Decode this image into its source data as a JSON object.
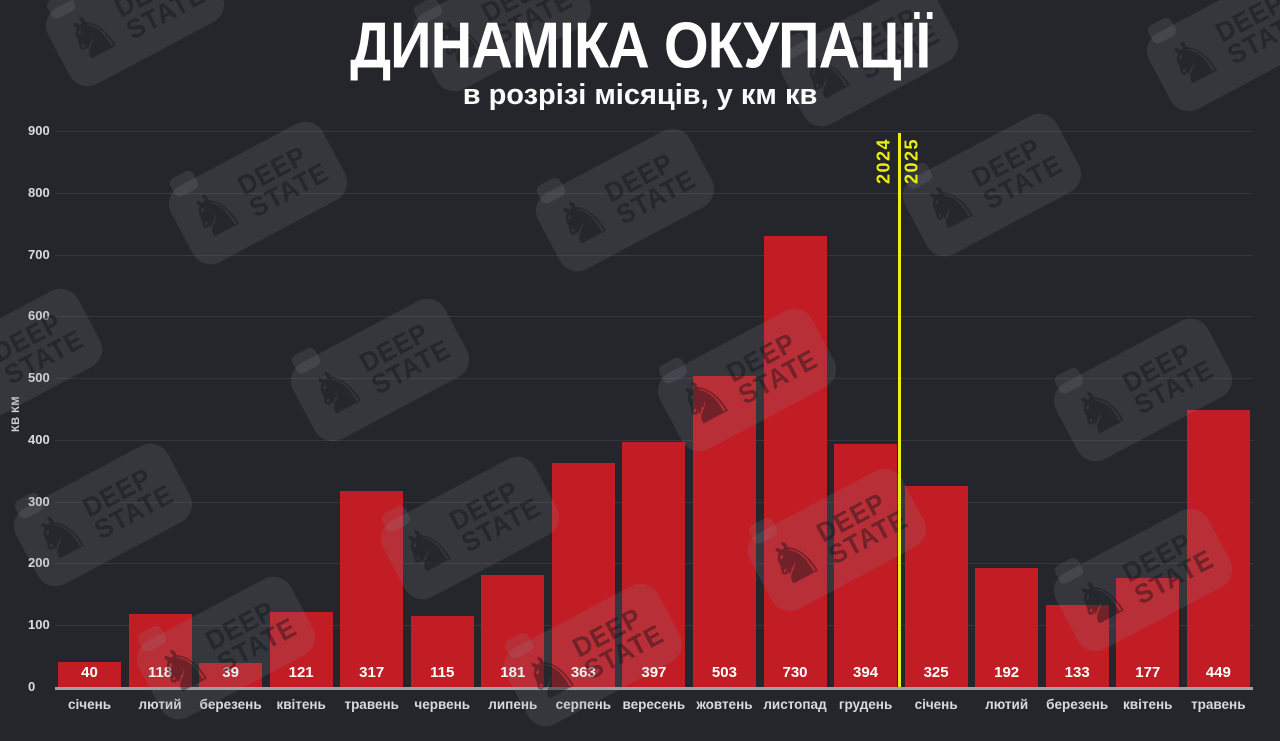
{
  "header": {
    "title": "ДИНАМІКА ОКУПАЦІЇ",
    "subtitle": "в розрізі місяців, у км кв"
  },
  "chart_data": {
    "type": "bar",
    "title": "ДИНАМІКА ОКУПАЦІЇ",
    "subtitle": "в розрізі місяців, у км кв",
    "categories": [
      "січень",
      "лютий",
      "березень",
      "квітень",
      "травень",
      "червень",
      "липень",
      "серпень",
      "вересень",
      "жовтень",
      "листопад",
      "грудень",
      "січень",
      "лютий",
      "березень",
      "квітень",
      "травень"
    ],
    "values": [
      40,
      118,
      39,
      121,
      317,
      115,
      181,
      363,
      397,
      503,
      730,
      394,
      325,
      192,
      133,
      177,
      449
    ],
    "xlabel": "",
    "ylabel": "КВ КМ",
    "ylim": [
      0,
      900
    ],
    "ytick_step": 100,
    "yticks": [
      0,
      100,
      200,
      300,
      400,
      500,
      600,
      700,
      800,
      900
    ],
    "grid": "horizontal",
    "legend": "none",
    "bar_color": "#c21c24",
    "year_split_after_index": 11
  },
  "year_divider": {
    "left_year": "2024",
    "right_year": "2025",
    "color": "#e9ef10"
  },
  "watermark": {
    "icon": "chess-knight-icon",
    "line1": "DEEP",
    "line2": "STATE"
  },
  "colors": {
    "background": "#24262b",
    "bar": "#c21c24",
    "gridline": "#34373d",
    "axis": "#9ea1a6",
    "text_primary": "#ffffff",
    "text_secondary": "#d8dadd",
    "accent_yellow": "#e9ef10"
  }
}
